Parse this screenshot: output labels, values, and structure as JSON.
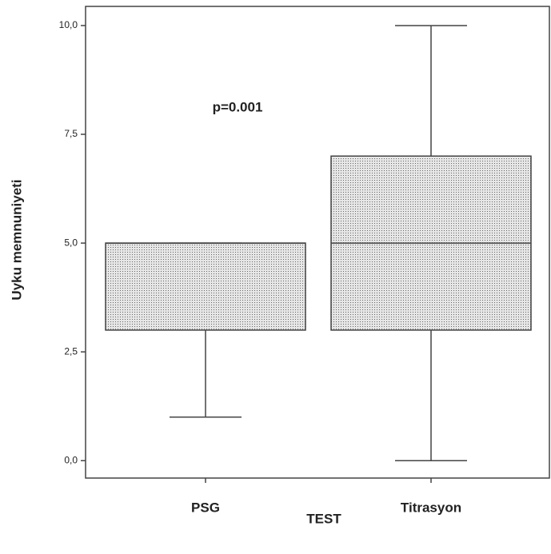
{
  "chart_data": {
    "type": "box",
    "annotation": "p=0.001",
    "x_label": "TEST",
    "y_label": "Uyku memnuniyeti",
    "categories": [
      "PSG",
      "Titrasyon"
    ],
    "boxes": [
      {
        "min": 1,
        "q1": 3,
        "median": 5,
        "q3": 5,
        "max": 5
      },
      {
        "min": 0,
        "q1": 3,
        "median": 5,
        "q3": 7,
        "max": 10
      }
    ],
    "color": "#c8c8c8",
    "ylim": [
      -0.4,
      10.44
    ],
    "yticks": [
      {
        "value": 0,
        "label": "0,0"
      },
      {
        "value": 2.5,
        "label": "2,5"
      },
      {
        "value": 5,
        "label": "5,0"
      },
      {
        "value": 7.5,
        "label": "7,5"
      },
      {
        "value": 10,
        "label": "10,0"
      }
    ],
    "grid": false
  }
}
